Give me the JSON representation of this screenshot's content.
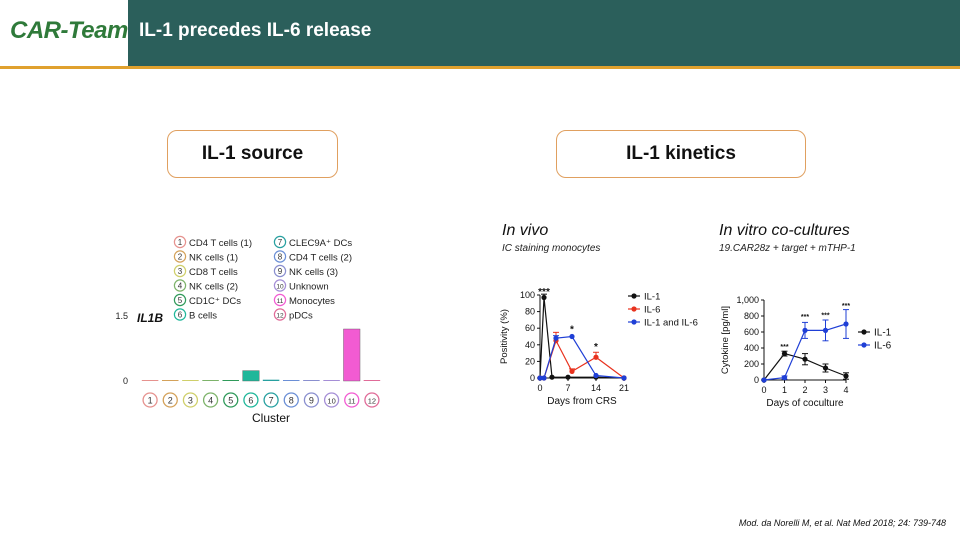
{
  "header": {
    "logo_text": "CAR-Team",
    "title": "IL-1 precedes IL-6 release"
  },
  "sections": {
    "left_title": "IL-1 source",
    "right_title": "IL-1 kinetics"
  },
  "in_vivo": {
    "title": "In vivo",
    "caption": "IC staining monocytes"
  },
  "in_vitro": {
    "title": "In vitro co-cultures",
    "caption": "19.CAR28z + target + mTHP-1"
  },
  "citation": "Mod. da Norelli M, et al. Nat Med 2018; 24: 739-748",
  "colors": {
    "header_bg": "#2b5f5b",
    "accent_orange": "#e0a12e",
    "il1": "#111111",
    "il6_red": "#e8321e",
    "il6_blue": "#1f3fd6"
  },
  "chart_data": [
    {
      "type": "bar",
      "title": "IL1B",
      "xlabel": "Cluster",
      "ylabel": "",
      "yticks": [
        "0",
        "1.5"
      ],
      "ylim": [
        0,
        1.5
      ],
      "grid": false,
      "legend_position": "top",
      "categories": [
        "1",
        "2",
        "3",
        "4",
        "5",
        "6",
        "7",
        "8",
        "9",
        "10",
        "11",
        "12"
      ],
      "values": [
        0.01,
        0.02,
        0.01,
        0.01,
        0.02,
        0.24,
        0.03,
        0.01,
        0.01,
        0.01,
        1.2,
        0.0
      ],
      "bar_colors": [
        "#e6928e",
        "#d4a25a",
        "#cfcf6a",
        "#7db36a",
        "#2f9a5a",
        "#1fb79a",
        "#27a0a0",
        "#6b8fd6",
        "#8a8fcf",
        "#a58ed6",
        "#f25bd2",
        "#e06b98"
      ],
      "legend": [
        {
          "num": "1",
          "label": "CD4 T cells (1)"
        },
        {
          "num": "2",
          "label": "NK cells (1)"
        },
        {
          "num": "3",
          "label": "CD8 T cells"
        },
        {
          "num": "4",
          "label": "NK cells (2)"
        },
        {
          "num": "5",
          "label": "CD1C⁺ DCs"
        },
        {
          "num": "6",
          "label": "B cells"
        },
        {
          "num": "7",
          "label": "CLEC9A⁺ DCs"
        },
        {
          "num": "8",
          "label": "CD4 T cells (2)"
        },
        {
          "num": "9",
          "label": "NK cells (3)"
        },
        {
          "num": "10",
          "label": "Unknown"
        },
        {
          "num": "11",
          "label": "Monocytes"
        },
        {
          "num": "12",
          "label": "pDCs"
        }
      ]
    },
    {
      "type": "line",
      "xlabel": "Days from CRS",
      "ylabel": "Positivity (%)",
      "xticks": [
        0,
        7,
        14,
        21
      ],
      "yticks": [
        0,
        20,
        40,
        60,
        80,
        100
      ],
      "xlim": [
        0,
        21
      ],
      "ylim": [
        0,
        100
      ],
      "legend_position": "right",
      "series": [
        {
          "name": "IL-1",
          "color": "#111111",
          "x": [
            0,
            1,
            3,
            7,
            14,
            21
          ],
          "y": [
            0,
            97,
            1,
            1,
            1,
            0
          ],
          "err": [
            0,
            4,
            0,
            0,
            0,
            0
          ]
        },
        {
          "name": "IL-6",
          "color": "#e8321e",
          "x": [
            0,
            1,
            4,
            8,
            14,
            21
          ],
          "y": [
            0,
            0,
            45,
            8,
            25,
            0
          ],
          "err": [
            0,
            0,
            10,
            3,
            6,
            0
          ]
        },
        {
          "name": "IL-1 and IL-6",
          "color": "#1f3fd6",
          "x": [
            0,
            1,
            4,
            8,
            14,
            21
          ],
          "y": [
            0,
            0,
            48,
            50,
            3,
            0
          ],
          "err": [
            0,
            0,
            3,
            0,
            0,
            0
          ]
        }
      ],
      "annotations": [
        {
          "x": 1,
          "y": 100,
          "text": "***"
        },
        {
          "x": 8,
          "y": 55,
          "text": "*"
        },
        {
          "x": 14,
          "y": 34,
          "text": "*"
        }
      ]
    },
    {
      "type": "line",
      "xlabel": "Days of coculture",
      "ylabel": "Cytokine [pg/ml]",
      "xticks": [
        0,
        1,
        2,
        3,
        4
      ],
      "ytick_labels": [
        "0",
        "200",
        "400",
        "600",
        "800",
        "1,000"
      ],
      "yticks": [
        0,
        200,
        400,
        600,
        800,
        1000
      ],
      "xlim": [
        0,
        4
      ],
      "ylim": [
        0,
        1000
      ],
      "legend_position": "right",
      "series": [
        {
          "name": "IL-1",
          "color": "#111111",
          "x": [
            0,
            1,
            2,
            3,
            4
          ],
          "y": [
            0,
            330,
            260,
            150,
            50
          ],
          "err": [
            0,
            30,
            70,
            50,
            40
          ]
        },
        {
          "name": "IL-6",
          "color": "#1f3fd6",
          "x": [
            0,
            1,
            2,
            3,
            4
          ],
          "y": [
            0,
            30,
            620,
            620,
            700
          ],
          "err": [
            0,
            20,
            100,
            130,
            180
          ]
        }
      ],
      "annotations": [
        {
          "x": 1,
          "y": 390,
          "text": "***"
        },
        {
          "x": 2,
          "y": 760,
          "text": "***"
        },
        {
          "x": 3,
          "y": 780,
          "text": "***"
        },
        {
          "x": 4,
          "y": 900,
          "text": "***"
        }
      ]
    }
  ]
}
